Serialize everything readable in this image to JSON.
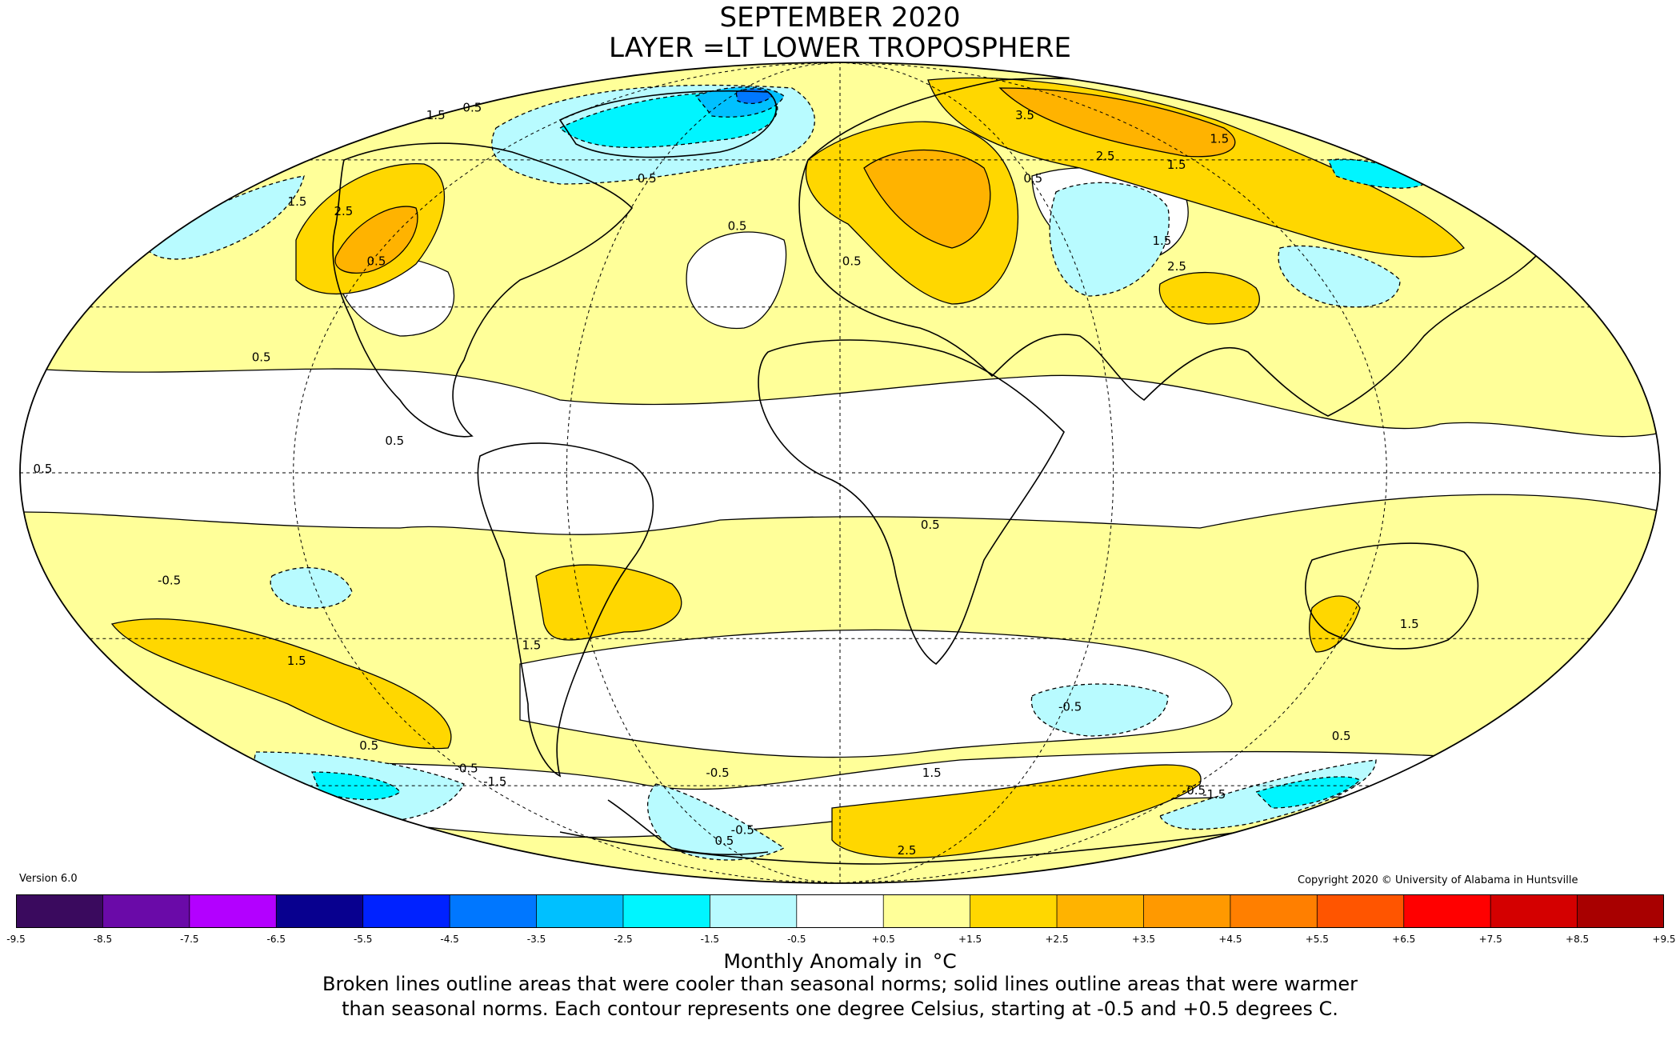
{
  "title": {
    "line1": "SEPTEMBER 2020",
    "line2": "LAYER =LT LOWER TROPOSPHERE"
  },
  "version": "Version 6.0",
  "copyright": "Copyright 2020 © University of Alabama in Huntsville",
  "colorbar": {
    "label": "Monthly Anomaly in  °C",
    "ticks": [
      "-9.5",
      "-8.5",
      "-7.5",
      "-6.5",
      "-5.5",
      "-4.5",
      "-3.5",
      "-2.5",
      "-1.5",
      "-0.5",
      "+0.5",
      "+1.5",
      "+2.5",
      "+3.5",
      "+4.5",
      "+5.5",
      "+6.5",
      "+7.5",
      "+8.5",
      "+9.5"
    ],
    "colors": [
      "#3a0a5e",
      "#6a0aa8",
      "#b300ff",
      "#08008f",
      "#0022ff",
      "#0077ff",
      "#00c0ff",
      "#00f5ff",
      "#b8fbff",
      "#ffffff",
      "#ffff99",
      "#ffd700",
      "#ffb300",
      "#ff9900",
      "#ff7f00",
      "#ff5500",
      "#ff0000",
      "#d40000",
      "#a80000"
    ]
  },
  "notes": {
    "line1": "Broken lines outline areas that were cooler than seasonal norms; solid lines outline areas that were warmer",
    "line2": "than seasonal norms. Each contour represents one degree Celsius, starting at -0.5 and +0.5 degrees C."
  },
  "map_labels": [
    {
      "text": "1.5",
      "lat": 70,
      "lon": -175
    },
    {
      "text": "0.5",
      "lat": 72,
      "lon": -170
    },
    {
      "text": "1.5",
      "lat": 50,
      "lon": -157
    },
    {
      "text": "2.5",
      "lat": 48,
      "lon": -140
    },
    {
      "text": "0.5",
      "lat": 38,
      "lon": -118
    },
    {
      "text": "0.5",
      "lat": 20,
      "lon": -132
    },
    {
      "text": "0.5",
      "lat": 55,
      "lon": -60
    },
    {
      "text": "0.5",
      "lat": 45,
      "lon": -28
    },
    {
      "text": "0.5",
      "lat": 0,
      "lon": -175
    },
    {
      "text": "0.5",
      "lat": 5,
      "lon": -98
    },
    {
      "text": "-0.5",
      "lat": -20,
      "lon": -153
    },
    {
      "text": "1.5",
      "lat": -35,
      "lon": -135
    },
    {
      "text": "1.5",
      "lat": -32,
      "lon": -75
    },
    {
      "text": "0.5",
      "lat": -52,
      "lon": -140
    },
    {
      "text": "-0.5",
      "lat": -57,
      "lon": -120
    },
    {
      "text": "-1.5",
      "lat": -60,
      "lon": -117
    },
    {
      "text": "0.5",
      "lat": -10,
      "lon": 20
    },
    {
      "text": "0.5",
      "lat": 38,
      "lon": 3
    },
    {
      "text": "-0.5",
      "lat": -44,
      "lon": 62
    },
    {
      "text": "1.5",
      "lat": -58,
      "lon": 30
    },
    {
      "text": "2.5",
      "lat": -78,
      "lon": 40
    },
    {
      "text": "-0.5",
      "lat": -72,
      "lon": -45
    },
    {
      "text": "-0.5",
      "lat": -58,
      "lon": -40
    },
    {
      "text": "0.5",
      "lat": -75,
      "lon": -60
    },
    {
      "text": "1.5",
      "lat": -28,
      "lon": 135
    },
    {
      "text": "0.5",
      "lat": -50,
      "lon": 145
    },
    {
      "text": "-0.5",
      "lat": -62,
      "lon": 125
    },
    {
      "text": "-1.5",
      "lat": -63,
      "lon": 135
    },
    {
      "text": "2.5",
      "lat": 60,
      "lon": 90
    },
    {
      "text": "1.5",
      "lat": 58,
      "lon": 110
    },
    {
      "text": "1.5",
      "lat": 42,
      "lon": 85
    },
    {
      "text": "2.5",
      "lat": 37,
      "lon": 85
    },
    {
      "text": "0.5",
      "lat": 55,
      "lon": 60
    },
    {
      "text": "3.5",
      "lat": 70,
      "lon": 80
    },
    {
      "text": "1.5",
      "lat": 64,
      "lon": 140
    }
  ]
}
